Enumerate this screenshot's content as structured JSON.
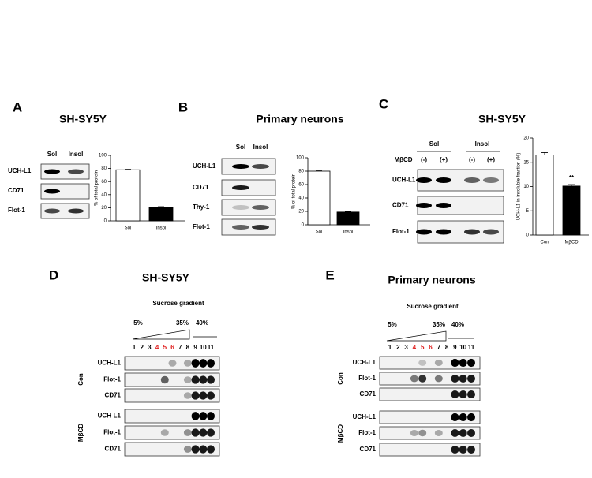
{
  "panels": [
    {
      "label": "A",
      "title": "SH-SY5Y",
      "columns": [
        "Sol",
        "Insol"
      ],
      "rows": [
        "UCH-L1",
        "CD71",
        "Flot-1"
      ],
      "chart": {
        "type": "bar",
        "ylabel": "% of total protein",
        "categories": [
          "Sol",
          "Insol"
        ],
        "values": [
          78,
          21
        ],
        "errors": [
          0.8,
          0.6
        ],
        "ylim": [
          0,
          100
        ],
        "yticks": [
          0,
          20,
          40,
          60,
          80,
          100
        ]
      }
    },
    {
      "label": "B",
      "title": "Primary neurons",
      "columns": [
        "Sol",
        "Insol"
      ],
      "rows": [
        "UCH-L1",
        "CD71",
        "Thy-1",
        "Flot-1"
      ],
      "chart": {
        "type": "bar",
        "ylabel": "% of total protein",
        "categories": [
          "Sol",
          "Insol"
        ],
        "values": [
          80,
          19
        ],
        "errors": [
          0.6,
          0.5
        ],
        "ylim": [
          0,
          100
        ],
        "yticks": [
          0,
          20,
          40,
          60,
          80,
          100
        ]
      }
    },
    {
      "label": "C",
      "title": "SH-SY5Y",
      "groups": [
        "Sol",
        "Insol"
      ],
      "treatment": "MβCD",
      "conditions": [
        "(-)",
        "(+)",
        "(-)",
        "(+)"
      ],
      "rows": [
        "UCH-L1",
        "CD71",
        "Flot-1"
      ],
      "chart": {
        "type": "bar",
        "ylabel": "UCH-L1 in insoluble fraction (%)",
        "categories": [
          "Con",
          "MβCD"
        ],
        "values": [
          16.5,
          10.1
        ],
        "errors": [
          0.5,
          0.3
        ],
        "annotation": "**",
        "ylim": [
          0,
          20
        ],
        "yticks": [
          0,
          5,
          10,
          15,
          20
        ]
      }
    },
    {
      "label": "D",
      "title": "SH-SY5Y",
      "subtitle": "Sucrose gradient",
      "gradient_labels": [
        "5%",
        "35%",
        "40%"
      ],
      "fractions": [
        "1",
        "2",
        "3",
        "4",
        "5",
        "6",
        "7",
        "8",
        "9",
        "10",
        "11"
      ],
      "conditions": [
        "Con",
        "MβCD"
      ],
      "rows": [
        "UCH-L1",
        "Flot-1",
        "CD71"
      ]
    },
    {
      "label": "E",
      "title": "Primary neurons",
      "subtitle": "Sucrose gradient",
      "gradient_labels": [
        "5%",
        "35%",
        "40%"
      ],
      "fractions": [
        "1",
        "2",
        "3",
        "4",
        "5",
        "6",
        "7",
        "8",
        "9",
        "10",
        "11"
      ],
      "conditions": [
        "Con",
        "MβCD"
      ],
      "rows": [
        "UCH-L1",
        "Flot-1",
        "CD71"
      ]
    }
  ]
}
